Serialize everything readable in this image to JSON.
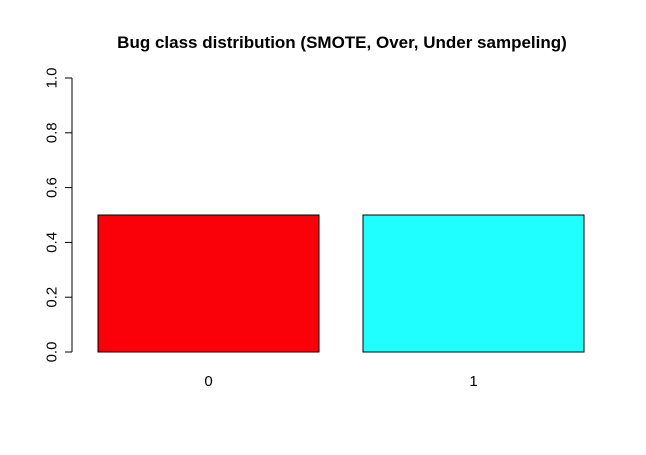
{
  "chart_data": {
    "type": "bar",
    "title": "Bug class distribution (SMOTE, Over, Under sampeling)",
    "xlabel": "",
    "ylabel": "",
    "categories": [
      "0",
      "1"
    ],
    "values": [
      0.5,
      0.5
    ],
    "colors": [
      "#fa0008",
      "#20ffff"
    ],
    "ylim": [
      0,
      1
    ],
    "yticks": [
      0.0,
      0.2,
      0.4,
      0.6,
      0.8,
      1.0
    ],
    "ytick_labels": [
      "0.0",
      "0.2",
      "0.4",
      "0.6",
      "0.8",
      "1.0"
    ],
    "grid": false,
    "legend": false
  }
}
